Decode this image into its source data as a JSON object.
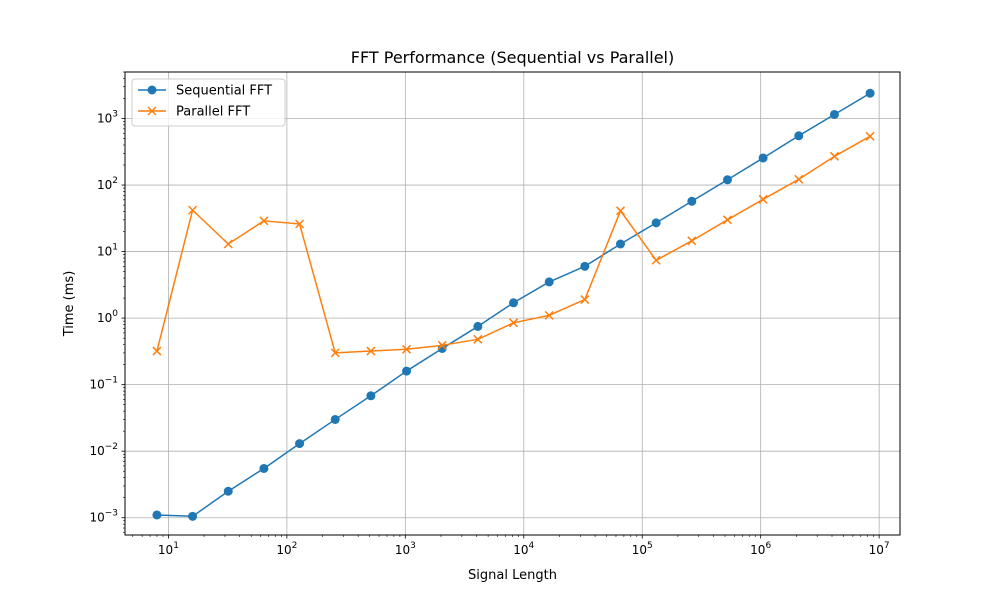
{
  "chart_data": {
    "type": "line",
    "title": "FFT Performance (Sequential vs Parallel)",
    "xlabel": "Signal Length",
    "ylabel": "Time (ms)",
    "xscale": "log",
    "yscale": "log",
    "xlim": [
      4.3,
      15000000
    ],
    "ylim": [
      0.00055,
      5000
    ],
    "grid": true,
    "legend_position": "upper-left",
    "x_ticks": [
      {
        "value": 10,
        "base": "10",
        "exp": "1"
      },
      {
        "value": 100,
        "base": "10",
        "exp": "2"
      },
      {
        "value": 1000,
        "base": "10",
        "exp": "3"
      },
      {
        "value": 10000,
        "base": "10",
        "exp": "4"
      },
      {
        "value": 100000,
        "base": "10",
        "exp": "5"
      },
      {
        "value": 1000000,
        "base": "10",
        "exp": "6"
      },
      {
        "value": 10000000,
        "base": "10",
        "exp": "7"
      }
    ],
    "y_ticks": [
      {
        "value": 0.001,
        "base": "10",
        "exp": "−3"
      },
      {
        "value": 0.01,
        "base": "10",
        "exp": "−2"
      },
      {
        "value": 0.1,
        "base": "10",
        "exp": "−1"
      },
      {
        "value": 1,
        "base": "10",
        "exp": "0"
      },
      {
        "value": 10,
        "base": "10",
        "exp": "1"
      },
      {
        "value": 100,
        "base": "10",
        "exp": "2"
      },
      {
        "value": 1000,
        "base": "10",
        "exp": "3"
      }
    ],
    "x": [
      8,
      16,
      32,
      64,
      128,
      256,
      512,
      1024,
      2048,
      4096,
      8192,
      16384,
      32768,
      65536,
      131072,
      262144,
      524288,
      1048576,
      2097152,
      4194304,
      8388608
    ],
    "series": [
      {
        "name": "Sequential FFT",
        "color": "#1f77b4",
        "marker": "circle",
        "values": [
          0.0011,
          0.00105,
          0.0025,
          0.0055,
          0.013,
          0.03,
          0.068,
          0.16,
          0.35,
          0.75,
          1.7,
          3.5,
          6.0,
          13,
          27,
          57,
          120,
          255,
          550,
          1150,
          2400
        ]
      },
      {
        "name": "Parallel FFT",
        "color": "#ff7f0e",
        "marker": "x",
        "values": [
          0.32,
          42,
          13,
          29,
          26,
          0.3,
          0.32,
          0.34,
          0.39,
          0.48,
          0.85,
          1.1,
          1.9,
          41,
          7.4,
          14.5,
          30,
          61,
          122,
          270,
          540
        ]
      }
    ]
  }
}
